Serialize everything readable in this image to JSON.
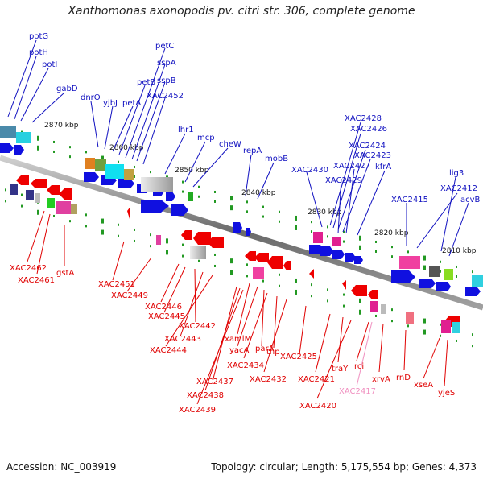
{
  "title": "Xanthomonas axonopodis pv. citri str. 306, complete genome",
  "footer": {
    "accession": "Accession: NC_003919",
    "summary": "Topology: circular; Length: 5,175,554 bp; Genes: 4,373"
  },
  "colors": {
    "forward_label": "#1010c0",
    "reverse_label": "#e00000",
    "pseudo_label": "#f090c0",
    "backbone": "#888888",
    "forward_arrow": "#1010e0",
    "reverse_arrow": "#ee0000"
  },
  "ticks": [
    "2870 kbp",
    "2860 kbp",
    "2850 kbp",
    "2840 kbp",
    "2830 kbp",
    "2820 kbp",
    "2810 kbp"
  ],
  "forward_labels": [
    "potG",
    "potH",
    "potI",
    "gabD",
    "dnrO",
    "yjbJ",
    "petA",
    "petB",
    "petC",
    "sspA",
    "sspB",
    "XAC2452",
    "lhr1",
    "mcp",
    "cheW",
    "repA",
    "mobB",
    "XAC2430",
    "XAC2428",
    "XAC2426",
    "XAC2424",
    "XAC2423",
    "XAC2427",
    "kfrA",
    "XAC2429",
    "lig3",
    "XAC2415",
    "XAC2412",
    "acvB"
  ],
  "reverse_labels": [
    "XAC2462",
    "XAC2461",
    "gstA",
    "XAC2451",
    "XAC2449",
    "XAC2446",
    "XAC2445",
    "XAC2442",
    "XAC2443",
    "XAC2444",
    "xamlM",
    "yacA",
    "parA",
    "XAC2434",
    "tnp",
    "XAC2425",
    "XAC2432",
    "XAC2437",
    "XAC2438",
    "XAC2439",
    "XAC2421",
    "traY",
    "XAC2420",
    "rci",
    "XAC2417",
    "xrvA",
    "rnD",
    "xseA",
    "yjeS"
  ],
  "pseudo_labels": [
    "XAC2417"
  ]
}
